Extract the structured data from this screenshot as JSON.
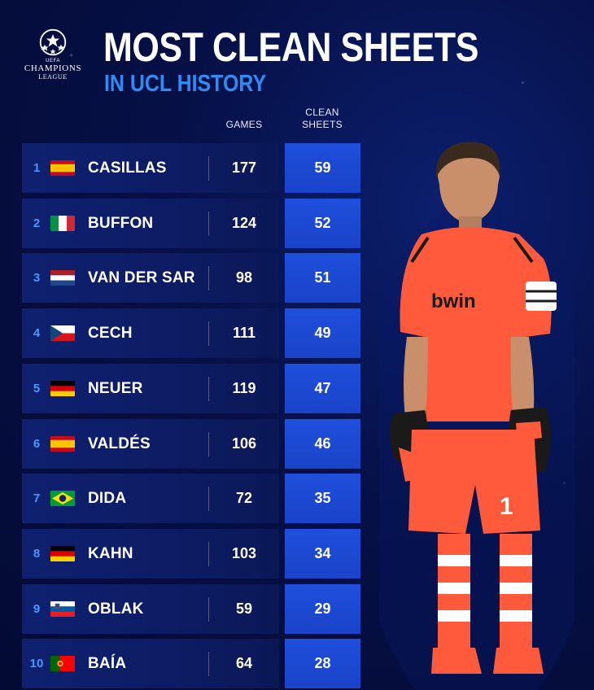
{
  "logo": {
    "small_text": "UEFA",
    "main_text": "CHAMPIONS",
    "sub_text": "LEAGUE"
  },
  "title": "MOST CLEAN SHEETS",
  "subtitle": "IN UCL HISTORY",
  "columns": {
    "games": "GAMES",
    "clean_sheets_line1": "CLEAN",
    "clean_sheets_line2": "SHEETS"
  },
  "colors": {
    "background": "#061046",
    "accent_blue": "#2f8cf5",
    "rank_blue": "#4a95ff",
    "clean_sheet_cell": "#1f4fdc",
    "kit": "#ff5a3c"
  },
  "rows": [
    {
      "rank": "1",
      "name": "CASILLAS",
      "games": "177",
      "clean_sheets": "59",
      "flag": "spain-flag-icon"
    },
    {
      "rank": "2",
      "name": "BUFFON",
      "games": "124",
      "clean_sheets": "52",
      "flag": "italy-flag-icon"
    },
    {
      "rank": "3",
      "name": "VAN DER SAR",
      "games": "98",
      "clean_sheets": "51",
      "flag": "netherlands-flag-icon"
    },
    {
      "rank": "4",
      "name": "CECH",
      "games": "111",
      "clean_sheets": "49",
      "flag": "czech-flag-icon"
    },
    {
      "rank": "5",
      "name": "NEUER",
      "games": "119",
      "clean_sheets": "47",
      "flag": "germany-flag-icon"
    },
    {
      "rank": "6",
      "name": "VALDÉS",
      "games": "106",
      "clean_sheets": "46",
      "flag": "spain-flag-icon"
    },
    {
      "rank": "7",
      "name": "DIDA",
      "games": "72",
      "clean_sheets": "35",
      "flag": "brazil-flag-icon"
    },
    {
      "rank": "8",
      "name": "KAHN",
      "games": "103",
      "clean_sheets": "34",
      "flag": "germany-flag-icon"
    },
    {
      "rank": "9",
      "name": "OBLAK",
      "games": "59",
      "clean_sheets": "29",
      "flag": "slovenia-flag-icon"
    },
    {
      "rank": "10",
      "name": "BAÍA",
      "games": "64",
      "clean_sheets": "28",
      "flag": "portugal-flag-icon"
    }
  ],
  "player": {
    "sponsor_text": "bwin",
    "shirt_number": "1"
  }
}
